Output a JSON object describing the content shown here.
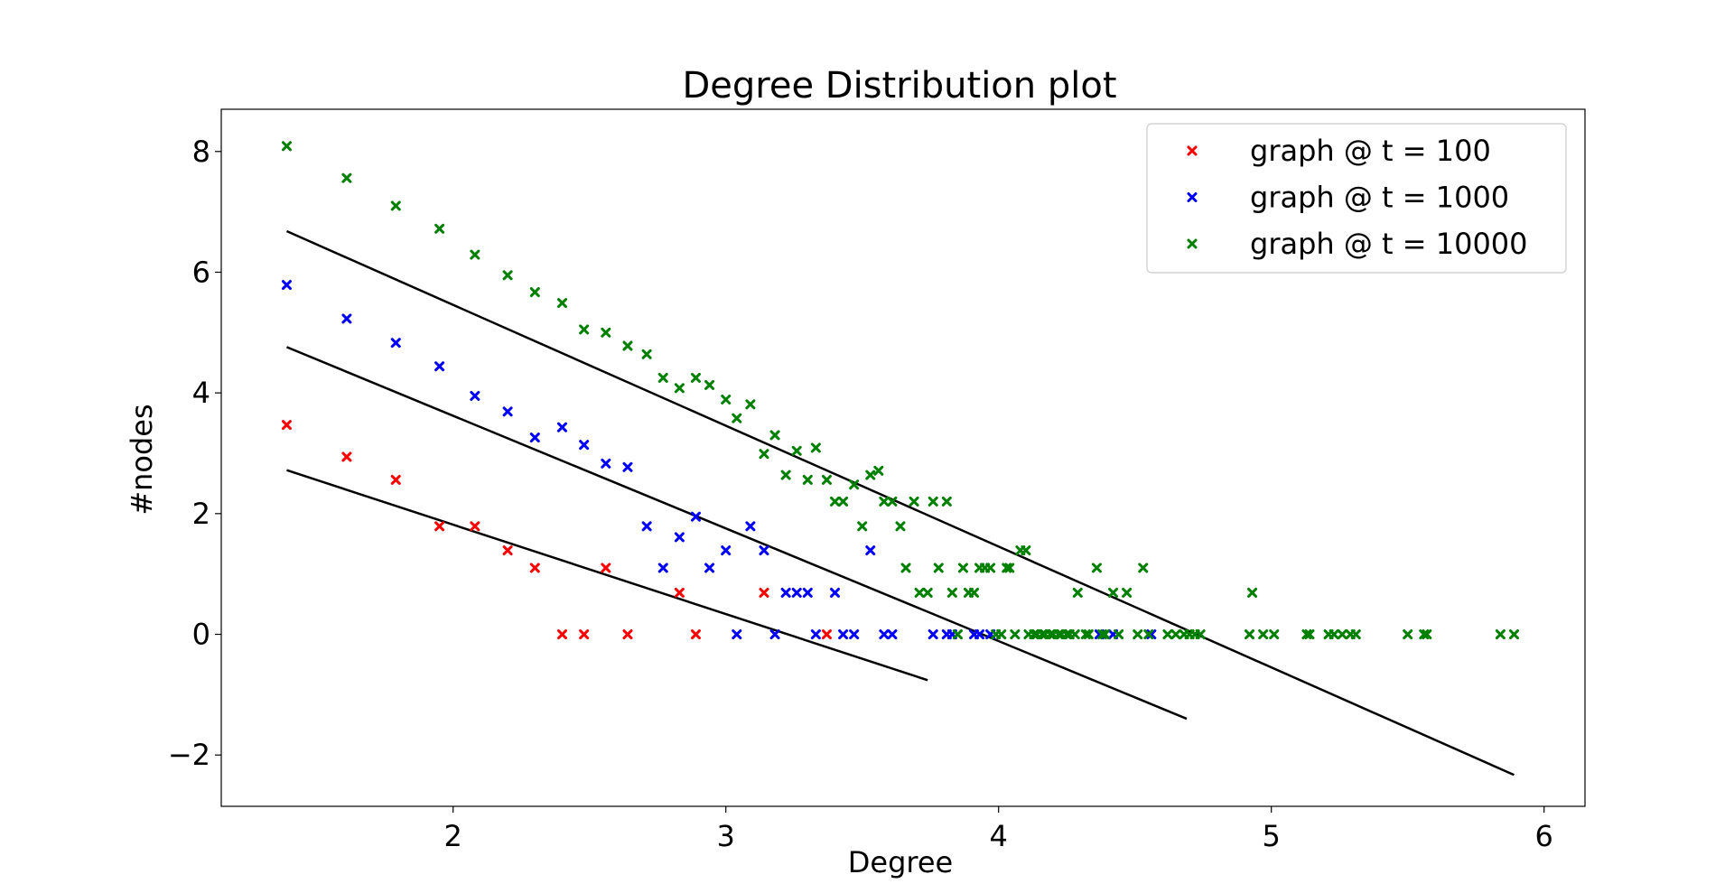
{
  "chart_data": {
    "type": "scatter",
    "title": "Degree Distribution plot",
    "xlabel": "Degree",
    "ylabel": "#nodes",
    "xlim": [
      1.15,
      6.15
    ],
    "ylim": [
      -2.85,
      8.7
    ],
    "xticks": [
      2,
      3,
      4,
      5,
      6
    ],
    "yticks": [
      -2,
      0,
      2,
      4,
      6,
      8
    ],
    "xtick_labels": [
      "2",
      "3",
      "4",
      "5",
      "6"
    ],
    "ytick_labels": [
      "−2",
      "0",
      "2",
      "4",
      "6",
      "8"
    ],
    "grid": false,
    "legend_position": "top-right",
    "marker": "x",
    "series": [
      {
        "name": "graph @ t = 100",
        "color": "#ff0000",
        "points": [
          [
            1.39,
            3.47
          ],
          [
            1.61,
            2.94
          ],
          [
            1.79,
            2.56
          ],
          [
            1.95,
            1.79
          ],
          [
            2.08,
            1.79
          ],
          [
            2.2,
            1.39
          ],
          [
            2.3,
            1.1
          ],
          [
            2.4,
            0.0
          ],
          [
            2.48,
            0.0
          ],
          [
            2.56,
            1.1
          ],
          [
            2.64,
            0.0
          ],
          [
            2.83,
            0.69
          ],
          [
            2.89,
            0.0
          ],
          [
            3.14,
            0.69
          ],
          [
            3.37,
            0.0
          ]
        ],
        "fit_line": [
          [
            1.39,
            2.72
          ],
          [
            3.74,
            -0.76
          ]
        ]
      },
      {
        "name": "graph @ t = 1000",
        "color": "#0000ff",
        "points": [
          [
            1.39,
            5.79
          ],
          [
            1.61,
            5.23
          ],
          [
            1.79,
            4.83
          ],
          [
            1.95,
            4.44
          ],
          [
            2.08,
            3.95
          ],
          [
            2.2,
            3.69
          ],
          [
            2.3,
            3.26
          ],
          [
            2.4,
            3.43
          ],
          [
            2.48,
            3.14
          ],
          [
            2.56,
            2.83
          ],
          [
            2.64,
            2.77
          ],
          [
            2.71,
            1.79
          ],
          [
            2.77,
            1.1
          ],
          [
            2.83,
            1.61
          ],
          [
            2.89,
            1.95
          ],
          [
            2.94,
            1.1
          ],
          [
            3.0,
            1.39
          ],
          [
            3.04,
            0.0
          ],
          [
            3.09,
            1.79
          ],
          [
            3.14,
            1.39
          ],
          [
            3.18,
            0.0
          ],
          [
            3.22,
            0.69
          ],
          [
            3.26,
            0.69
          ],
          [
            3.3,
            0.69
          ],
          [
            3.33,
            0.0
          ],
          [
            3.4,
            0.69
          ],
          [
            3.43,
            0.0
          ],
          [
            3.47,
            0.0
          ],
          [
            3.53,
            1.39
          ],
          [
            3.58,
            0.0
          ],
          [
            3.61,
            0.0
          ],
          [
            3.76,
            0.0
          ],
          [
            3.81,
            0.0
          ],
          [
            3.83,
            0.0
          ],
          [
            3.91,
            0.0
          ],
          [
            3.93,
            0.0
          ],
          [
            3.97,
            0.0
          ],
          [
            4.37,
            0.0
          ],
          [
            4.42,
            0.0
          ],
          [
            4.56,
            0.0
          ]
        ],
        "fit_line": [
          [
            1.39,
            4.76
          ],
          [
            4.69,
            -1.4
          ]
        ]
      },
      {
        "name": "graph @ t = 10000",
        "color": "#008000",
        "points": [
          [
            1.39,
            8.09
          ],
          [
            1.61,
            7.56
          ],
          [
            1.79,
            7.1
          ],
          [
            1.95,
            6.72
          ],
          [
            2.08,
            6.29
          ],
          [
            2.2,
            5.95
          ],
          [
            2.3,
            5.67
          ],
          [
            2.4,
            5.49
          ],
          [
            2.48,
            5.05
          ],
          [
            2.56,
            5.0
          ],
          [
            2.64,
            4.78
          ],
          [
            2.71,
            4.64
          ],
          [
            2.77,
            4.25
          ],
          [
            2.83,
            4.08
          ],
          [
            2.89,
            4.25
          ],
          [
            2.94,
            4.13
          ],
          [
            3.0,
            3.89
          ],
          [
            3.04,
            3.58
          ],
          [
            3.09,
            3.81
          ],
          [
            3.14,
            2.99
          ],
          [
            3.18,
            3.3
          ],
          [
            3.22,
            2.64
          ],
          [
            3.26,
            3.04
          ],
          [
            3.3,
            2.56
          ],
          [
            3.33,
            3.09
          ],
          [
            3.37,
            2.56
          ],
          [
            3.4,
            2.2
          ],
          [
            3.43,
            2.2
          ],
          [
            3.47,
            2.48
          ],
          [
            3.5,
            1.79
          ],
          [
            3.53,
            2.64
          ],
          [
            3.56,
            2.71
          ],
          [
            3.58,
            2.2
          ],
          [
            3.61,
            2.2
          ],
          [
            3.64,
            1.79
          ],
          [
            3.66,
            1.1
          ],
          [
            3.69,
            2.2
          ],
          [
            3.71,
            0.69
          ],
          [
            3.74,
            0.69
          ],
          [
            3.76,
            2.2
          ],
          [
            3.78,
            1.1
          ],
          [
            3.81,
            2.2
          ],
          [
            3.83,
            0.69
          ],
          [
            3.85,
            0.0
          ],
          [
            3.87,
            1.1
          ],
          [
            3.89,
            0.69
          ],
          [
            3.91,
            0.69
          ],
          [
            3.93,
            1.1
          ],
          [
            3.95,
            1.1
          ],
          [
            3.97,
            1.1
          ],
          [
            3.99,
            0.0
          ],
          [
            4.01,
            0.0
          ],
          [
            4.03,
            1.1
          ],
          [
            4.04,
            1.1
          ],
          [
            4.06,
            0.0
          ],
          [
            4.08,
            1.39
          ],
          [
            4.1,
            1.39
          ],
          [
            4.11,
            0.0
          ],
          [
            4.13,
            0.0
          ],
          [
            4.14,
            0.0
          ],
          [
            4.16,
            0.0
          ],
          [
            4.17,
            0.0
          ],
          [
            4.19,
            0.0
          ],
          [
            4.2,
            0.0
          ],
          [
            4.22,
            0.0
          ],
          [
            4.23,
            0.0
          ],
          [
            4.25,
            0.0
          ],
          [
            4.26,
            0.0
          ],
          [
            4.28,
            0.0
          ],
          [
            4.29,
            0.69
          ],
          [
            4.32,
            0.0
          ],
          [
            4.33,
            0.0
          ],
          [
            4.36,
            1.1
          ],
          [
            4.38,
            0.0
          ],
          [
            4.39,
            0.0
          ],
          [
            4.42,
            0.69
          ],
          [
            4.44,
            0.0
          ],
          [
            4.47,
            0.69
          ],
          [
            4.51,
            0.0
          ],
          [
            4.53,
            1.1
          ],
          [
            4.55,
            0.0
          ],
          [
            4.62,
            0.0
          ],
          [
            4.65,
            0.0
          ],
          [
            4.68,
            0.0
          ],
          [
            4.7,
            0.0
          ],
          [
            4.72,
            0.0
          ],
          [
            4.74,
            0.0
          ],
          [
            4.92,
            0.0
          ],
          [
            4.93,
            0.69
          ],
          [
            4.97,
            0.0
          ],
          [
            5.01,
            0.0
          ],
          [
            5.13,
            0.0
          ],
          [
            5.14,
            0.0
          ],
          [
            5.21,
            0.0
          ],
          [
            5.23,
            0.0
          ],
          [
            5.26,
            0.0
          ],
          [
            5.29,
            0.0
          ],
          [
            5.31,
            0.0
          ],
          [
            5.5,
            0.0
          ],
          [
            5.56,
            0.0
          ],
          [
            5.57,
            0.0
          ],
          [
            5.84,
            0.0
          ],
          [
            5.89,
            0.0
          ]
        ],
        "fit_line": [
          [
            1.39,
            6.68
          ],
          [
            5.89,
            -2.33
          ]
        ]
      }
    ]
  }
}
